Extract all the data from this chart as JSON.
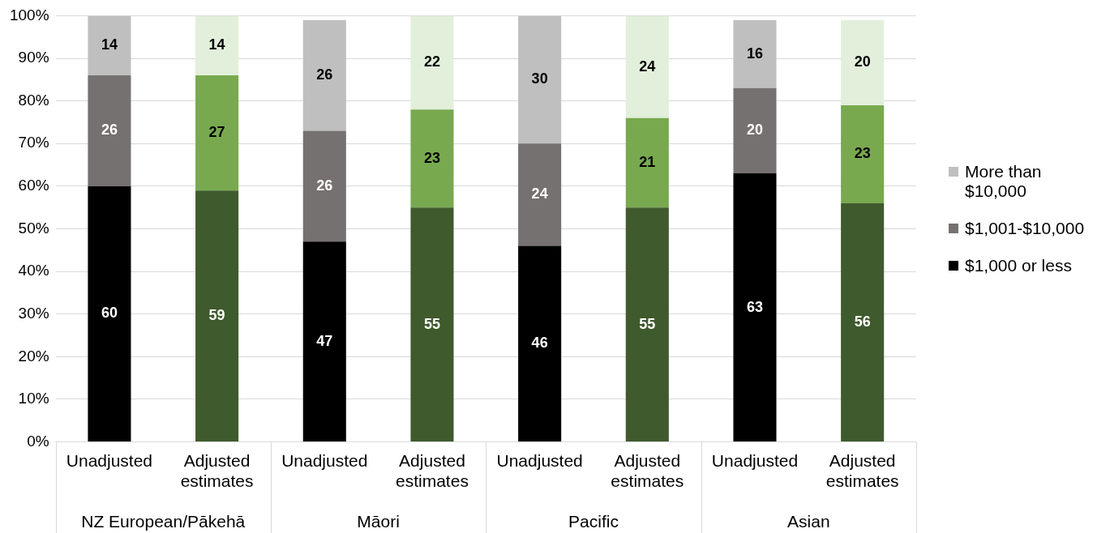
{
  "chart_data": {
    "type": "bar",
    "stacked": true,
    "categories": [
      "Unadjusted",
      "Adjusted estimates",
      "Unadjusted",
      "Adjusted estimates",
      "Unadjusted",
      "Adjusted estimates",
      "Unadjusted",
      "Adjusted estimates"
    ],
    "annotations": [
      "NZ European/Pākehā",
      "Māori",
      "Pacific",
      "Asian"
    ],
    "series": [
      {
        "name": "$1,000 or less",
        "color": "#000000",
        "colors": [
          "#000000",
          "#3f5a2c",
          "#000000",
          "#3f5a2c",
          "#000000",
          "#3f5a2c",
          "#000000",
          "#3f5a2c"
        ],
        "values": [
          60,
          59,
          47,
          55,
          46,
          55,
          63,
          56
        ]
      },
      {
        "name": "$1,001-$10,000",
        "color": "#767171",
        "colors": [
          "#767171",
          "#78a94f",
          "#767171",
          "#78a94f",
          "#767171",
          "#78a94f",
          "#767171",
          "#78a94f"
        ],
        "values": [
          26,
          27,
          26,
          23,
          24,
          21,
          20,
          23
        ]
      },
      {
        "name": "More than $10,000",
        "color": "#bfbfbf",
        "colors": [
          "#bfbfbf",
          "#e2efda",
          "#bfbfbf",
          "#e2efda",
          "#bfbfbf",
          "#e2efda",
          "#bfbfbf",
          "#e2efda"
        ],
        "values": [
          14,
          14,
          26,
          22,
          30,
          24,
          16,
          20
        ]
      }
    ],
    "data_labels": true,
    "ylim": [
      0,
      100
    ],
    "yticks": [
      {
        "value": 0,
        "label": "0%"
      },
      {
        "value": 10,
        "label": "10%"
      },
      {
        "value": 20,
        "label": "20%"
      },
      {
        "value": 30,
        "label": "30%"
      },
      {
        "value": 40,
        "label": "40%"
      },
      {
        "value": 50,
        "label": "50%"
      },
      {
        "value": 60,
        "label": "60%"
      },
      {
        "value": 70,
        "label": "70%"
      },
      {
        "value": 80,
        "label": "80%"
      },
      {
        "value": 90,
        "label": "90%"
      },
      {
        "value": 100,
        "label": "100%"
      }
    ],
    "grid": "y",
    "legend": "right"
  }
}
